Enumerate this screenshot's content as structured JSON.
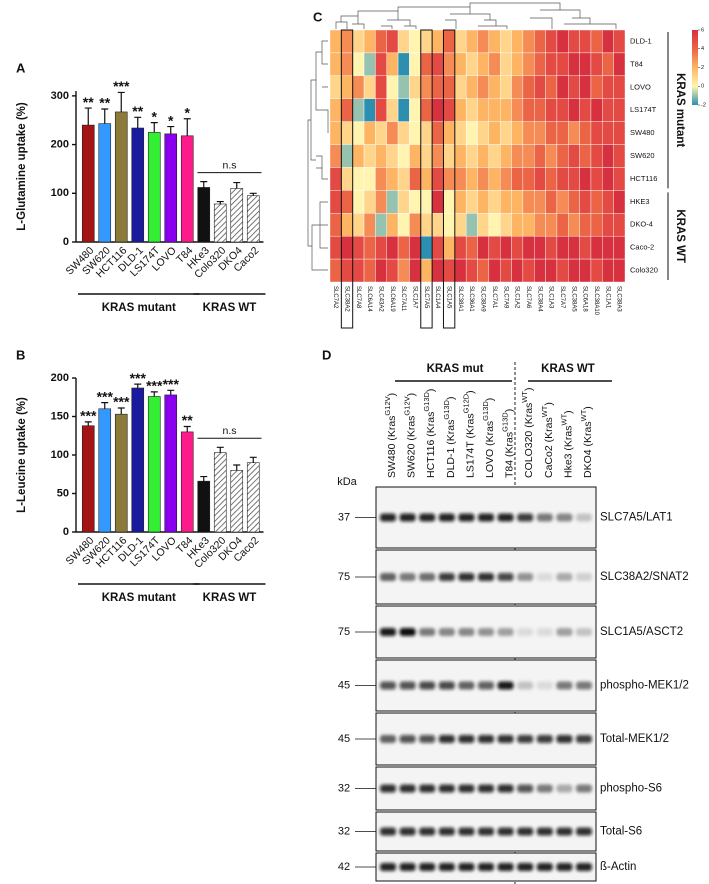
{
  "chart_data": [
    {
      "type": "bar",
      "panel_label": "A",
      "ylabel": "L-Glutamine uptake (%)",
      "categories": [
        "SW480",
        "SW620",
        "HCT116",
        "DLD-1",
        "LS174T",
        "LOVO",
        "T84",
        "HKe3",
        "Colo320",
        "DKO4",
        "Caco2"
      ],
      "values": [
        240,
        243,
        267,
        234,
        225,
        222,
        218,
        112,
        78,
        110,
        95
      ],
      "errors": [
        35,
        30,
        40,
        22,
        20,
        15,
        35,
        12,
        5,
        12,
        5
      ],
      "colors": [
        "#a31515",
        "#3399ff",
        "#8b7a3a",
        "#1a1a9e",
        "#33ee33",
        "#8a00ee",
        "#ff1a8c",
        "#111111",
        "#555555",
        "#555555",
        "#555555"
      ],
      "fill_pattern": [
        "solid",
        "solid",
        "solid",
        "solid",
        "solid",
        "solid",
        "solid",
        "solid",
        "hatch",
        "hatch",
        "hatch"
      ],
      "significance": [
        "**",
        "**",
        "***",
        "**",
        "*",
        "*",
        "*",
        null,
        null,
        null,
        null
      ],
      "groups": [
        {
          "name": "KRAS mutant",
          "members": [
            "SW480",
            "SW620",
            "HCT116",
            "DLD-1",
            "LS174T",
            "LOVO",
            "T84"
          ]
        },
        {
          "name": "KRAS WT",
          "members": [
            "HKe3",
            "Colo320",
            "DKO4",
            "Caco2"
          ],
          "annotation": "n.s"
        }
      ],
      "ylim": [
        0,
        310
      ],
      "yticks": [
        0,
        100,
        200,
        300
      ]
    },
    {
      "type": "bar",
      "panel_label": "B",
      "ylabel": "L-Leucine uptake (%)",
      "categories": [
        "SW480",
        "SW620",
        "HCT116",
        "DLD-1",
        "LS174T",
        "LOVO",
        "T84",
        "HKe3",
        "Colo320",
        "DKO4",
        "Caco2"
      ],
      "values": [
        138,
        160,
        153,
        187,
        176,
        178,
        130,
        66,
        103,
        80,
        90
      ],
      "errors": [
        5,
        8,
        8,
        5,
        6,
        6,
        7,
        6,
        7,
        7,
        7
      ],
      "colors": [
        "#a31515",
        "#3399ff",
        "#8b7a3a",
        "#1a1a9e",
        "#33ee33",
        "#8a00ee",
        "#ff1a8c",
        "#111111",
        "#555555",
        "#555555",
        "#555555"
      ],
      "fill_pattern": [
        "solid",
        "solid",
        "solid",
        "solid",
        "solid",
        "solid",
        "solid",
        "solid",
        "hatch",
        "hatch",
        "hatch"
      ],
      "significance": [
        "***",
        "***",
        "***",
        "***",
        "***",
        "***",
        "**",
        null,
        null,
        null,
        null
      ],
      "groups": [
        {
          "name": "KRAS mutant",
          "members": [
            "SW480",
            "SW620",
            "HCT116",
            "DLD-1",
            "LS174T",
            "LOVO",
            "T84"
          ]
        },
        {
          "name": "KRAS WT",
          "members": [
            "HKe3",
            "Colo320",
            "DKO4",
            "Caco2"
          ],
          "annotation": "n.s"
        }
      ],
      "ylim": [
        0,
        200
      ],
      "yticks": [
        0,
        50,
        100,
        150,
        200
      ]
    },
    {
      "type": "heatmap",
      "panel_label": "C",
      "rows": [
        "DLD-1",
        "T84",
        "LOVO",
        "LS174T",
        "SW480",
        "SW620",
        "HCT116",
        "HKE3",
        "DKO-4",
        "Caco-2",
        "Colo320"
      ],
      "columns": [
        "SLC7A2",
        "SLC38A2",
        "SLC7A8",
        "SLC6A14",
        "SLC43A2",
        "SLC6A19",
        "SLC7A11",
        "SLC1A7",
        "SLC7A5",
        "SLC1A4",
        "SLC1A5",
        "SLC38A1",
        "SLC36A1",
        "SLC38A9",
        "SLC7A1",
        "SLC7A9",
        "SLC1A2",
        "SLC7A6",
        "SLC38A4",
        "SLC1A3",
        "SLC7A7",
        "SLC38A5",
        "SLC6A18",
        "SLC38A10",
        "SLC1A1",
        "SLC38A3"
      ],
      "values": [
        [
          2,
          3,
          1,
          2,
          4,
          5,
          1,
          0,
          1,
          2,
          4,
          1,
          2,
          3,
          2,
          1,
          2,
          3,
          4,
          5,
          6,
          5,
          5,
          4,
          6,
          5
        ],
        [
          2,
          3,
          0,
          -1,
          5,
          2,
          -2,
          0,
          4,
          5,
          3,
          2,
          1,
          2,
          3,
          1,
          2,
          3,
          4,
          5,
          5,
          6,
          6,
          5,
          4,
          6
        ],
        [
          1,
          2,
          3,
          1,
          5,
          0,
          -1,
          1,
          3,
          4,
          4,
          1,
          2,
          3,
          2,
          1,
          3,
          4,
          5,
          4,
          6,
          5,
          6,
          4,
          5,
          5
        ],
        [
          2,
          4,
          -1,
          -2,
          5,
          1,
          -2,
          0,
          4,
          6,
          5,
          2,
          1,
          2,
          2,
          2,
          3,
          4,
          4,
          5,
          5,
          6,
          5,
          6,
          5,
          5
        ],
        [
          2,
          1,
          0,
          2,
          1,
          3,
          1,
          0,
          1,
          4,
          2,
          1,
          0,
          1,
          2,
          1,
          2,
          3,
          3,
          4,
          4,
          3,
          4,
          5,
          5,
          5
        ],
        [
          3,
          -1,
          2,
          1,
          2,
          1,
          0,
          2,
          1,
          3,
          1,
          2,
          1,
          2,
          1,
          2,
          3,
          3,
          4,
          3,
          4,
          5,
          4,
          5,
          6,
          5
        ],
        [
          5,
          1,
          0,
          0,
          3,
          2,
          1,
          4,
          2,
          5,
          3,
          3,
          2,
          3,
          2,
          3,
          4,
          4,
          5,
          4,
          5,
          5,
          6,
          5,
          6,
          5
        ],
        [
          5,
          4,
          0,
          1,
          3,
          -1,
          1,
          0,
          0,
          6,
          0,
          2,
          1,
          2,
          1,
          2,
          2,
          3,
          3,
          4,
          3,
          4,
          5,
          4,
          5,
          6
        ],
        [
          4,
          2,
          1,
          3,
          -1,
          2,
          0,
          3,
          1,
          1,
          0,
          1,
          -1,
          1,
          0,
          1,
          2,
          2,
          3,
          3,
          4,
          3,
          4,
          4,
          5,
          5
        ],
        [
          5,
          6,
          5,
          4,
          5,
          6,
          4,
          6,
          -2,
          5,
          2,
          5,
          4,
          6,
          5,
          6,
          5,
          6,
          6,
          5,
          6,
          6,
          5,
          6,
          6,
          6
        ],
        [
          4,
          5,
          5,
          4,
          6,
          5,
          3,
          6,
          2,
          6,
          5,
          6,
          5,
          4,
          6,
          5,
          6,
          5,
          6,
          6,
          5,
          6,
          6,
          5,
          6,
          6
        ]
      ],
      "clim": [
        -2,
        6
      ],
      "cticks": [
        6,
        4,
        2,
        0,
        -2
      ],
      "colors": [
        "#2c8fb0",
        "#fff5b0",
        "#fdb463",
        "#ec6446",
        "#d7303f"
      ],
      "highlighted_columns": [
        "SLC38A2",
        "SLC7A5",
        "SLC1A5"
      ],
      "groups": [
        {
          "name": "KRAS mutant",
          "members": [
            "DLD-1",
            "T84",
            "LOVO",
            "LS174T",
            "SW480",
            "SW620",
            "HCT116"
          ]
        },
        {
          "name": "KRAS WT",
          "members": [
            "HKE3",
            "DKO-4",
            "Caco-2",
            "Colo320"
          ]
        }
      ]
    }
  ],
  "western_blot": {
    "panel_label": "D",
    "groups": [
      {
        "name": "KRAS mut"
      },
      {
        "name": "KRAS WT"
      }
    ],
    "kda_label": "kDa",
    "lanes": [
      [
        "SW480 (Kras",
        "G12V",
        ")"
      ],
      [
        "SW620 (Kras",
        "G12V",
        ")"
      ],
      [
        "HCT116 (Kras",
        "G13D",
        ")"
      ],
      [
        "DLD-1 (Kras",
        "G13D",
        ")"
      ],
      [
        "LS174T (Kras",
        "G12D",
        ")"
      ],
      [
        "LOVO (Kras",
        "G13D",
        ")"
      ],
      [
        "T84 (Kras",
        "G13D",
        ")"
      ],
      [
        "COLO320 (Kras",
        "WT",
        ")"
      ],
      [
        "CaCo2 (Kras",
        "WT",
        ")"
      ],
      [
        "Hke3 (Kras",
        "WT",
        ")"
      ],
      [
        "DKO4 (Kras",
        "WT",
        ")"
      ]
    ],
    "blots": [
      {
        "kda": 37,
        "protein": "SLC7A5/LAT1",
        "bands": [
          0.9,
          0.9,
          0.9,
          0.9,
          0.9,
          0.9,
          0.9,
          0.8,
          0.5,
          0.45,
          0.2
        ]
      },
      {
        "kda": 75,
        "protein": "SLC38A2/SNAT2",
        "bands": [
          0.6,
          0.5,
          0.55,
          0.8,
          0.85,
          0.85,
          0.75,
          0.4,
          0.1,
          0.3,
          0.15
        ]
      },
      {
        "kda": 75,
        "protein": "SLC1A5/ASCT2",
        "bands": [
          0.95,
          1,
          0.5,
          0.45,
          0.45,
          0.4,
          0.35,
          0.1,
          0.1,
          0.35,
          0.2
        ]
      },
      {
        "kda": 45,
        "protein": "phospho-MEK1/2",
        "bands": [
          0.7,
          0.7,
          0.75,
          0.75,
          0.6,
          0.65,
          0.95,
          0.2,
          0.1,
          0.5,
          0.5
        ]
      },
      {
        "kda": 45,
        "protein": "Total-MEK1/2",
        "bands": [
          0.6,
          0.7,
          0.7,
          0.85,
          0.85,
          0.85,
          0.85,
          0.8,
          0.8,
          0.85,
          0.8
        ]
      },
      {
        "kda": 32,
        "protein": "phospho-S6",
        "bands": [
          0.85,
          0.85,
          0.85,
          0.85,
          0.85,
          0.85,
          0.85,
          0.7,
          0.5,
          0.3,
          0.5
        ]
      },
      {
        "kda": 32,
        "protein": "Total-S6",
        "bands": [
          0.85,
          0.85,
          0.85,
          0.85,
          0.85,
          0.85,
          0.85,
          0.85,
          0.85,
          0.85,
          0.85
        ]
      },
      {
        "kda": 42,
        "protein": "ß-Actin",
        "bands": [
          0.9,
          0.9,
          0.9,
          0.9,
          0.9,
          0.9,
          0.9,
          0.9,
          0.9,
          0.9,
          0.9
        ]
      }
    ]
  }
}
